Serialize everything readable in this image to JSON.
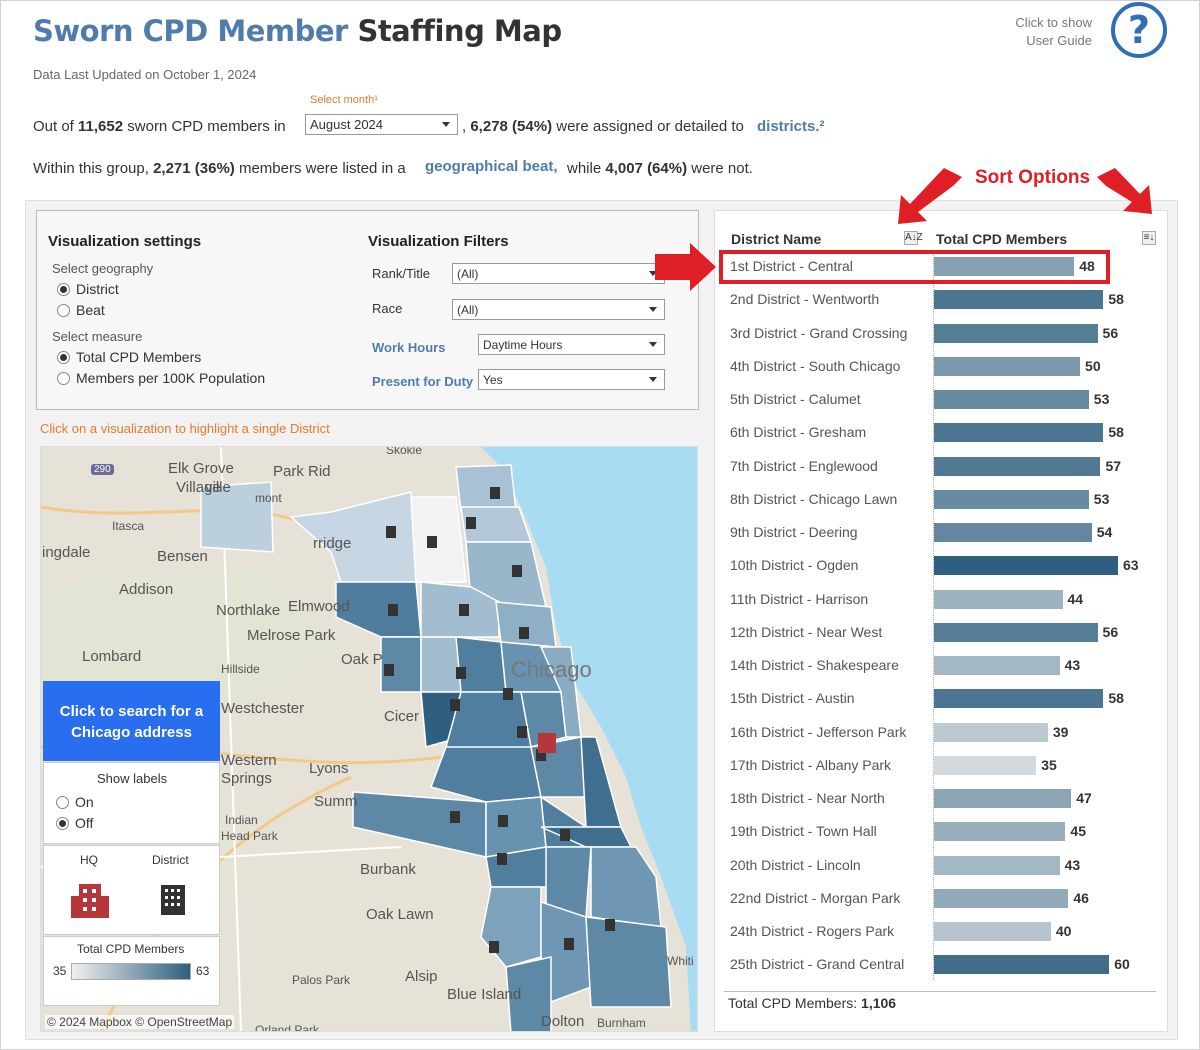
{
  "header": {
    "title_part1": "Sworn CPD Member",
    "title_part2": "Staffing Map",
    "updated": "Data Last Updated on October 1, 2024",
    "guide_line1": "Click to show",
    "guide_line2": "User Guide",
    "help_symbol": "?"
  },
  "summary": {
    "s1_prefix": "Out of",
    "s1_total": "11,652",
    "s1_mid": "sworn CPD members in",
    "month_label": "Select month¹",
    "month_value": "August 2024",
    "s1_assigned": "6,278 (54%)",
    "s1_assigned_text": "were assigned or detailed to",
    "s1_link": "districts.²",
    "s2_prefix": "Within this group,",
    "s2_beat": "2,271 (36%)",
    "s2_mid": "members were listed in a",
    "s2_link": "geographical beat,",
    "s2_while": "while",
    "s2_not": "4,007 (64%)",
    "s2_end": "were not."
  },
  "annotation": {
    "sort_options": "Sort Options"
  },
  "settings": {
    "title": "Visualization settings",
    "geo_label": "Select geography",
    "geo_options": [
      "District",
      "Beat"
    ],
    "geo_selected": "District",
    "measure_label": "Select measure",
    "measure_options": [
      "Total CPD Members",
      "Members per 100K Population"
    ],
    "measure_selected": "Total CPD Members"
  },
  "filters": {
    "title": "Visualization Filters",
    "rank_label": "Rank/Title",
    "rank_value": "(All)",
    "race_label": "Race",
    "race_value": "(All)",
    "hours_label": "Work Hours",
    "hours_value": "Daytime Hours",
    "duty_label": "Present for Duty",
    "duty_value": "Yes"
  },
  "map": {
    "hint": "Click on a visualization to highlight a single District",
    "search_btn_line1": "Click to search for a",
    "search_btn_line2": "Chicago address",
    "labels_title": "Show labels",
    "labels_options": [
      "On",
      "Off"
    ],
    "labels_selected": "Off",
    "hq_label": "HQ",
    "district_label": "District",
    "scale_title": "Total CPD Members",
    "scale_min": "35",
    "scale_max": "63",
    "attribution": "© 2024 Mapbox © OpenStreetMap",
    "places": [
      "Skokie",
      "Elk Grove",
      "Village",
      "Park Rid",
      "Itasca",
      "ingdale",
      "Bensen",
      "Addison",
      "Northlake",
      "Elmwood",
      "Melrose Park",
      "Lombard",
      "Hillside",
      "Oak P",
      "Chicago",
      "Westchester",
      "Cicer",
      "Western",
      "Springs",
      "Lyons",
      "Summ",
      "Indian",
      "Head Park",
      "Burbank",
      "Oak Lawn",
      "Palos Park",
      "Alsip",
      "Blue Island",
      "Dolton",
      "Burnham",
      "Whiti",
      "Orland Park",
      "mont",
      "rridge",
      "290",
      "ville"
    ],
    "colors": {
      "hq": "#b5373a",
      "district_icon": "#333333",
      "water": "#a8dcf2",
      "scale_low": "#f0f0f0",
      "scale_high": "#2e5f7f"
    }
  },
  "chart": {
    "col_name": "District Name",
    "col_value": "Total CPD Members",
    "sort_az": "A↓Z",
    "sort_val": "≡↓",
    "total_label": "Total CPD Members:",
    "total_value": "1,106"
  },
  "chart_data": {
    "type": "bar",
    "orientation": "horizontal",
    "categories": [
      "1st District - Central",
      "2nd District - Wentworth",
      "3rd District - Grand Crossing",
      "4th District - South Chicago",
      "5th District - Calumet",
      "6th District - Gresham",
      "7th District - Englewood",
      "8th District - Chicago Lawn",
      "9th District - Deering",
      "10th District - Ogden",
      "11th District - Harrison",
      "12th District - Near West",
      "14th District - Shakespeare",
      "15th District - Austin",
      "16th District - Jefferson Park",
      "17th District - Albany Park",
      "18th District - Near North",
      "19th District - Town Hall",
      "20th District - Lincoln",
      "22nd District - Morgan Park",
      "24th District - Rogers Park",
      "25th District - Grand Central"
    ],
    "values": [
      48,
      58,
      56,
      50,
      53,
      58,
      57,
      53,
      54,
      63,
      44,
      56,
      43,
      58,
      39,
      35,
      47,
      45,
      43,
      46,
      40,
      60
    ],
    "xlabel": "Total CPD Members",
    "ylabel": "District Name",
    "color_scale": [
      "#f0f0f0",
      "#2e5f7f"
    ],
    "color_range": [
      35,
      63
    ],
    "highlighted": "1st District - Central"
  }
}
